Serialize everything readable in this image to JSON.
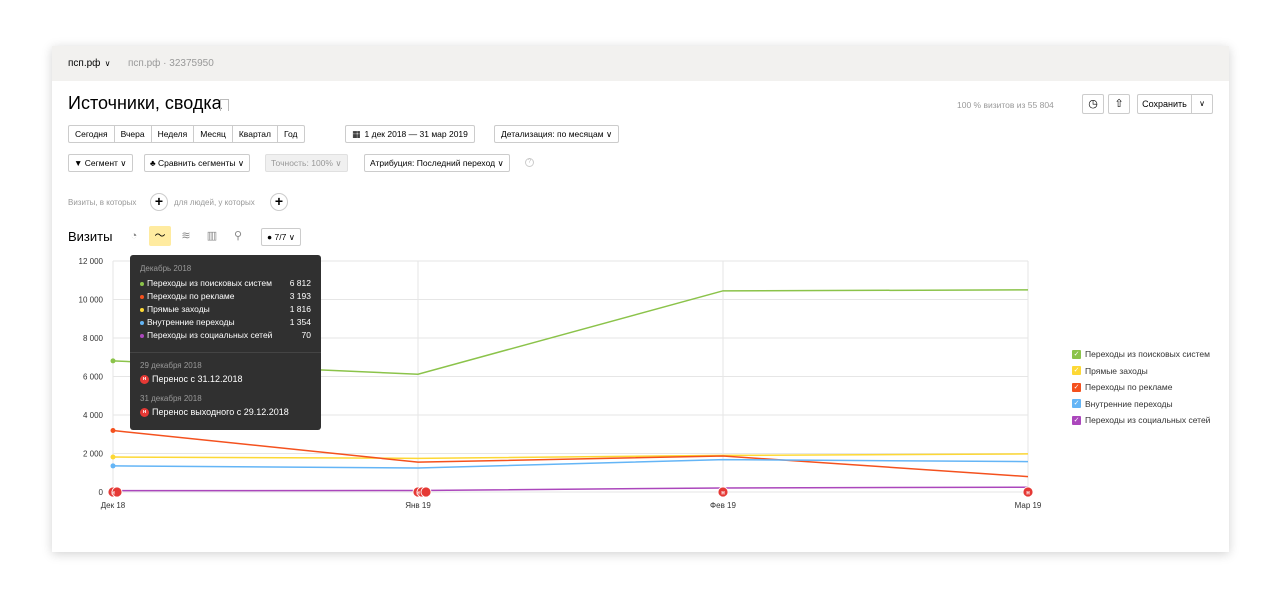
{
  "header": {
    "site": "псп.рф",
    "site_id": "псп.рф · 32375950"
  },
  "page": {
    "title": "Источники, сводка",
    "visits_share": "100 % визитов из 55 804",
    "save_label": "Сохранить"
  },
  "periods": [
    "Сегодня",
    "Вчера",
    "Неделя",
    "Месяц",
    "Квартал",
    "Год"
  ],
  "date_range": "1 дек 2018 — 31 мар 2019",
  "detail": "Детализация: по месяцам",
  "filters": {
    "segment": "Сегмент",
    "compare": "Сравнить сегменты",
    "accuracy": "Точность: 100%",
    "attribution": "Атрибуция: Последний переход"
  },
  "conditions": {
    "visits_text": "Визиты, в которых",
    "people_text": "для людей, у которых"
  },
  "metric": {
    "title": "Визиты",
    "series_count": "7/7"
  },
  "icons": {
    "chevron": "chevron-down-icon",
    "history": "clock-icon",
    "export": "export-icon",
    "calendar": "calendar-icon",
    "segment": "filter-icon",
    "compare": "compare-icon",
    "info": "info-icon"
  },
  "legend": [
    {
      "label": "Переходы из поисковых систем",
      "color": "#8bc34a"
    },
    {
      "label": "Прямые заходы",
      "color": "#fdd835"
    },
    {
      "label": "Переходы по рекламе",
      "color": "#f4511e"
    },
    {
      "label": "Внутренние переходы",
      "color": "#64b5f6"
    },
    {
      "label": "Переходы из социальных сетей",
      "color": "#ab47bc"
    }
  ],
  "tooltip": {
    "header": "Декабрь 2018",
    "rows": [
      {
        "name": "Переходы из поисковых систем",
        "value": "6 812",
        "color": "#8bc34a"
      },
      {
        "name": "Переходы по рекламе",
        "value": "3 193",
        "color": "#f4511e"
      },
      {
        "name": "Прямые заходы",
        "value": "1 816",
        "color": "#fdd835"
      },
      {
        "name": "Внутренние переходы",
        "value": "1 354",
        "color": "#64b5f6"
      },
      {
        "name": "Переходы из социальных сетей",
        "value": "70",
        "color": "#ab47bc"
      }
    ],
    "holidays": [
      {
        "date": "29 декабря 2018",
        "name": "Перенос с 31.12.2018"
      },
      {
        "date": "31 декабря 2018",
        "name": "Перенос выходного с 29.12.2018"
      }
    ]
  },
  "chart_data": {
    "type": "line",
    "categories": [
      "Дек 18",
      "Янв 19",
      "Фев 19",
      "Мар 19"
    ],
    "ylim": [
      0,
      12000
    ],
    "yticks": [
      "0",
      "2 000",
      "4 000",
      "6 000",
      "8 000",
      "10 000",
      "12 000"
    ],
    "grid": true,
    "legend_position": "right",
    "series": [
      {
        "name": "Переходы из поисковых систем",
        "color": "#8bc34a",
        "values": [
          6812,
          6120,
          10450,
          10500
        ]
      },
      {
        "name": "Прямые заходы",
        "color": "#fdd835",
        "values": [
          1816,
          1750,
          1900,
          1980
        ]
      },
      {
        "name": "Переходы по рекламе",
        "color": "#f4511e",
        "values": [
          3193,
          1550,
          1870,
          800
        ]
      },
      {
        "name": "Внутренние переходы",
        "color": "#64b5f6",
        "values": [
          1354,
          1250,
          1680,
          1580
        ]
      },
      {
        "name": "Переходы из социальных сетей",
        "color": "#ab47bc",
        "values": [
          70,
          80,
          210,
          250
        ]
      }
    ],
    "holiday_markers": [
      {
        "category": "Дек 18",
        "count": 2
      },
      {
        "category": "Янв 19",
        "count": 3
      },
      {
        "category": "Фев 19",
        "count": 1
      },
      {
        "category": "Мар 19",
        "count": 1
      }
    ],
    "holiday_marker_label": "н"
  }
}
